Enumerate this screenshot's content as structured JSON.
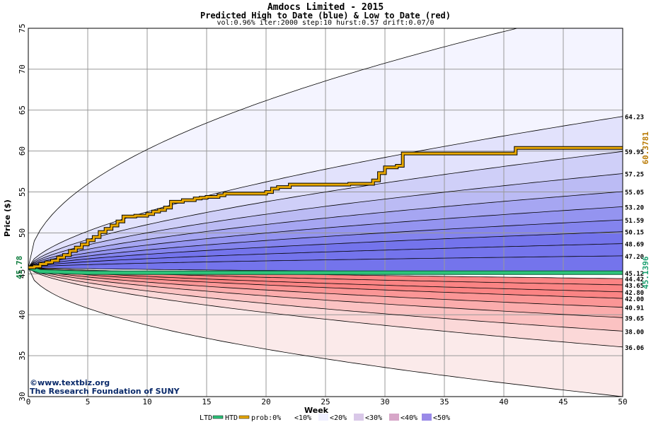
{
  "header": {
    "title": "Amdocs Limited - 2015",
    "subtitle": "Predicted High to Date (blue) &  Low to Date (red)",
    "params": "vol:0.96% iter:2000 step:10 hurst:0.57 drift:0.07/0"
  },
  "credit": {
    "line1": "©www.textbiz.org",
    "line2": "The Research Foundation of SUNY"
  },
  "legend": {
    "ltd": "LTD",
    "htd": "HTD",
    "prob": "prob:0%",
    "b10": "<10%",
    "b20": "<20%",
    "b30": "<30%",
    "b40": "<40%",
    "b50": "<50%"
  },
  "chart_data": {
    "type": "area",
    "xlabel": "Week",
    "ylabel": "Price ($)",
    "xlim": [
      0,
      50
    ],
    "ylim": [
      30,
      75
    ],
    "xticks": [
      0,
      5,
      10,
      15,
      20,
      25,
      30,
      35,
      40,
      45,
      50
    ],
    "yticks": [
      30,
      35,
      40,
      45,
      50,
      55,
      60,
      65,
      70,
      75
    ],
    "start_price": "45.78",
    "start_value": 45.78,
    "grid": true,
    "legend_placement": "bottom",
    "high_quantiles": [
      "64.23",
      "59.95",
      "57.25",
      "55.05",
      "53.20",
      "51.59",
      "50.15",
      "48.69",
      "47.20",
      "45.12"
    ],
    "high_end_values": [
      64.23,
      59.95,
      57.25,
      55.05,
      53.2,
      51.59,
      50.15,
      48.69,
      47.2,
      45.12
    ],
    "low_quantiles": [
      "44.42",
      "43.65",
      "42.80",
      "42.00",
      "40.91",
      "39.65",
      "38.00",
      "36.06"
    ],
    "low_end_values": [
      44.42,
      43.65,
      42.8,
      42.0,
      40.91,
      39.65,
      38.0,
      36.06
    ],
    "extreme_high_end": 78.0,
    "extreme_low_end": 30.0,
    "actual_high_label": "60.3781",
    "actual_low_label": "45.1396",
    "actual_high_series": {
      "name": "HTD",
      "x": [
        0,
        0.5,
        1,
        1.5,
        2,
        2.5,
        3,
        3.5,
        4,
        4.5,
        5,
        5.5,
        6,
        6.5,
        7,
        7.5,
        8,
        9,
        10,
        10.5,
        11,
        11.5,
        12,
        13,
        14,
        14.5,
        15,
        16,
        16.5,
        17,
        19,
        20,
        20.5,
        21,
        22,
        27,
        29,
        29.5,
        30,
        31,
        31.5,
        40.8,
        41,
        50
      ],
      "y": [
        45.78,
        45.9,
        46.2,
        46.4,
        46.6,
        47.0,
        47.3,
        47.8,
        48.2,
        48.6,
        49.1,
        49.5,
        50.1,
        50.5,
        50.9,
        51.4,
        52.0,
        52.1,
        52.3,
        52.6,
        52.8,
        53.1,
        53.8,
        54.0,
        54.2,
        54.3,
        54.4,
        54.6,
        54.8,
        54.8,
        54.8,
        55.0,
        55.4,
        55.6,
        55.9,
        56.0,
        56.4,
        57.3,
        58.0,
        58.2,
        59.7,
        59.7,
        60.38,
        60.38
      ]
    },
    "actual_low_series": {
      "name": "LTD",
      "x": [
        0,
        1,
        5,
        50
      ],
      "y": [
        45.78,
        45.3,
        45.14,
        45.14
      ]
    },
    "colors": {
      "htd": "#e8a800",
      "ltd": "#2ec47a",
      "start_label": "#0a7a3a",
      "high_label": "#b87800",
      "low_label": "#1aa070",
      "blue_bands": [
        "#f4f4ff",
        "#e2e2fc",
        "#cfcff8",
        "#bbbbf4",
        "#a6a6f2",
        "#9494f0",
        "#8484ee",
        "#7474ec"
      ],
      "red_bands": [
        "#fbeaea",
        "#fbd8d8",
        "#fbc2c2",
        "#fbacac",
        "#fb9696",
        "#fb8484"
      ]
    }
  }
}
